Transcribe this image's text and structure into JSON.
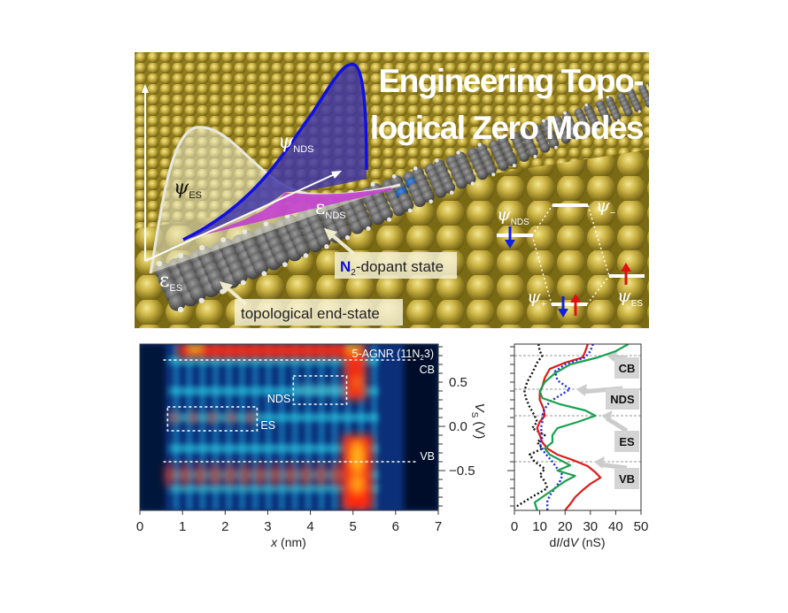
{
  "illustration": {
    "title_line1": "Engineering Topo-",
    "title_line2": "logical Zero Modes",
    "psi_es": "ψ",
    "psi_es_sub": "ES",
    "psi_nds": "ψ",
    "psi_nds_sub": "NDS",
    "eps_nds": "ε",
    "eps_nds_sub": "NDS",
    "eps_es": "ε",
    "eps_es_sub": "ES",
    "dopant_label_n": "N",
    "dopant_label_sub": "2",
    "dopant_label_rest": "-dopant state",
    "end_state_label": "topological end-state",
    "level_diagram": {
      "psi_nds": "ψ",
      "psi_nds_sub": "NDS",
      "psi_minus": "ψ",
      "psi_minus_sub": "−",
      "psi_plus": "ψ",
      "psi_plus_sub": "+",
      "psi_es": "ψ",
      "psi_es_sub": "ES"
    },
    "colors": {
      "gold_surface": "#b8a232",
      "ribbon_carbon": "#5c5c5c",
      "nitrogen": "#1f5fb0",
      "psi_nds_fill": "#4a3fa0",
      "psi_nds_line": "#1010e0",
      "overlap_fill": "#c040d0",
      "spin_down": "#1020e0",
      "spin_up": "#e01010"
    }
  },
  "chart_data": [
    {
      "type": "heatmap",
      "title": "5-AGNR (11N₂3)",
      "title_main": "5-AGNR (11N",
      "title_sub": "2",
      "title_end": "3)",
      "xlabel": "x (nm)",
      "xlabel_var": "x",
      "xlabel_unit": " (nm)",
      "ylabel": "V_S (V)",
      "xlim": [
        0,
        7
      ],
      "ylim": [
        -0.95,
        0.93
      ],
      "xticks": [
        "0",
        "1",
        "2",
        "3",
        "4",
        "5",
        "6",
        "7"
      ],
      "xtick_values": [
        0,
        1,
        2,
        3,
        4,
        5,
        6,
        7
      ],
      "yticks": [
        "0.5",
        "0.0",
        "−0.5"
      ],
      "ytick_values": [
        0.5,
        0.0,
        -0.5
      ],
      "colormap": [
        "#000a28",
        "#0a3a8a",
        "#1a8fd8",
        "#30f0f0",
        "#ff3010",
        "#ffe020"
      ],
      "bands": [
        {
          "label": "CB",
          "energy": 0.75
        },
        {
          "label": "VB",
          "energy": -0.4
        }
      ],
      "boxes": [
        {
          "label": "NDS",
          "x": [
            3.6,
            4.85
          ],
          "v": [
            0.25,
            0.57
          ]
        },
        {
          "label": "ES",
          "x": [
            0.65,
            2.75
          ],
          "v": [
            -0.05,
            0.22
          ]
        }
      ],
      "features": [
        {
          "name": "CB-high",
          "x": [
            0.9,
            5.3
          ],
          "v": [
            0.78,
            0.93
          ],
          "intensity": 1.0
        },
        {
          "name": "NDS-end",
          "x": [
            4.8,
            5.3
          ],
          "v": [
            0.3,
            0.78
          ],
          "intensity": 0.95
        },
        {
          "name": "ES-spots",
          "x": [
            0.8,
            2.6
          ],
          "v": 0.1,
          "intensity": 0.9,
          "n": 5
        },
        {
          "name": "NDS-spots",
          "x": [
            3.8,
            4.6
          ],
          "v": 0.42,
          "intensity": 0.55,
          "n": 4
        },
        {
          "name": "VB-spots",
          "x": [
            0.7,
            4.6
          ],
          "v": -0.55,
          "intensity": 0.85,
          "n": 12
        },
        {
          "name": "VB-end",
          "x": [
            4.75,
            5.45
          ],
          "v": [
            -0.95,
            -0.1
          ],
          "intensity": 1.0
        }
      ]
    },
    {
      "type": "line",
      "xlabel": "dI/dV (nS)",
      "xlabel_pre": "d",
      "xlabel_i": "I",
      "xlabel_mid": "/d",
      "xlabel_v": "V",
      "xlabel_unit": " (nS)",
      "ylabel": "V_S (V)",
      "ylabel_v": "V",
      "ylabel_sub": "S",
      "ylabel_unit": " (V)",
      "xlim": [
        0,
        50
      ],
      "ylim": [
        -0.95,
        0.93
      ],
      "xticks": [
        "0",
        "10",
        "20",
        "30",
        "40",
        "50"
      ],
      "xtick_values": [
        0,
        10,
        20,
        30,
        40,
        50
      ],
      "reference_lines": [
        0.8,
        0.42,
        0.12,
        -0.4
      ],
      "callouts": [
        {
          "label": "CB",
          "v": 0.65
        },
        {
          "label": "NDS",
          "v": 0.3
        },
        {
          "label": "ES",
          "v": -0.18
        },
        {
          "label": "VB",
          "v": -0.6
        }
      ],
      "series": [
        {
          "name": "black-dotted",
          "color": "#111111",
          "style": "dotted",
          "v": [
            0.93,
            0.85,
            0.8,
            0.72,
            0.6,
            0.5,
            0.4,
            0.32,
            0.22,
            0.12,
            0.05,
            -0.02,
            -0.1,
            -0.18,
            -0.25,
            -0.32,
            -0.4,
            -0.48,
            -0.55,
            -0.62,
            -0.7,
            -0.78,
            -0.85,
            -0.92
          ],
          "dIdV": [
            9.5,
            10,
            11,
            9,
            7,
            5,
            4,
            4.5,
            6,
            8,
            9,
            7,
            12,
            9,
            11,
            6,
            8,
            12,
            10,
            12,
            13,
            8,
            4,
            0
          ]
        },
        {
          "name": "red",
          "color": "#e01818",
          "style": "solid",
          "v": [
            0.93,
            0.85,
            0.78,
            0.72,
            0.65,
            0.55,
            0.45,
            0.38,
            0.3,
            0.2,
            0.12,
            0.05,
            -0.02,
            -0.1,
            -0.18,
            -0.25,
            -0.32,
            -0.38,
            -0.45,
            -0.52,
            -0.58,
            -0.65,
            -0.72,
            -0.8,
            -0.88,
            -0.95
          ],
          "dIdV": [
            29,
            28,
            27,
            20,
            14,
            12,
            11,
            10,
            10,
            11.5,
            12,
            10,
            9,
            10,
            11,
            13,
            17,
            23,
            29,
            32,
            34,
            30,
            27,
            24,
            22,
            20
          ]
        },
        {
          "name": "blue-dotted",
          "color": "#1a2ae0",
          "style": "dotted",
          "v": [
            0.93,
            0.85,
            0.78,
            0.7,
            0.62,
            0.52,
            0.42,
            0.35,
            0.28,
            0.2,
            0.12,
            0.05,
            -0.02,
            -0.1,
            -0.2,
            -0.3,
            -0.4,
            -0.48,
            -0.55,
            -0.62,
            -0.7,
            -0.78,
            -0.85,
            -0.95
          ],
          "dIdV": [
            31,
            30,
            28,
            20,
            16,
            17,
            22,
            18,
            14,
            12,
            11,
            11,
            10.5,
            11,
            10,
            12,
            15,
            17,
            19,
            18,
            16,
            14,
            13,
            13
          ]
        },
        {
          "name": "green",
          "color": "#1aa050",
          "style": "solid",
          "v": [
            0.93,
            0.85,
            0.78,
            0.7,
            0.6,
            0.5,
            0.4,
            0.32,
            0.25,
            0.18,
            0.12,
            0.05,
            -0.02,
            -0.1,
            -0.18,
            -0.25,
            -0.32,
            -0.38,
            -0.44,
            -0.5,
            -0.56,
            -0.62,
            -0.7,
            -0.78,
            -0.86,
            -0.95
          ],
          "dIdV": [
            45,
            40,
            33,
            22,
            16,
            12,
            10,
            11,
            18,
            28,
            32,
            25,
            17,
            15,
            15,
            12,
            14,
            18,
            22,
            17,
            24,
            20,
            16,
            12,
            8,
            9
          ]
        }
      ]
    }
  ]
}
